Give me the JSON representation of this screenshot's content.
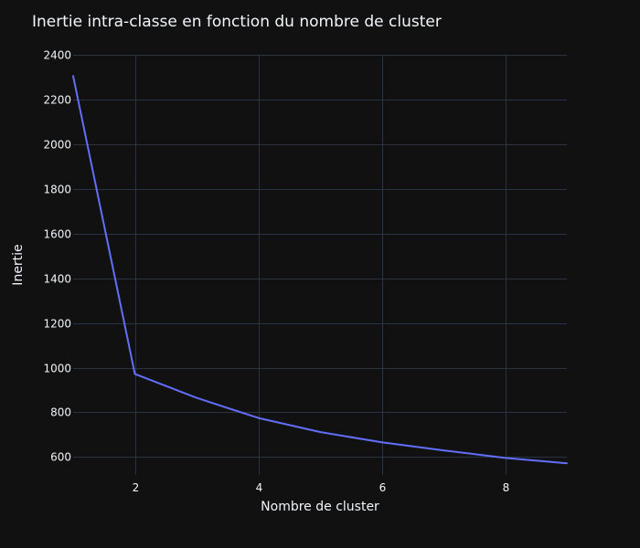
{
  "chart_data": {
    "type": "line",
    "title": "Inertie intra-classe en fonction du nombre de cluster",
    "xlabel": "Nombre de cluster",
    "ylabel": "Inertie",
    "x": [
      1,
      2,
      3,
      4,
      5,
      6,
      7,
      8,
      9
    ],
    "series": [
      {
        "values": [
          2305,
          972,
          865,
          775,
          712,
          666,
          630,
          596,
          572
        ]
      }
    ],
    "xlim": [
      1,
      9
    ],
    "ylim": [
      520,
      2400
    ],
    "xticks": [
      2,
      4,
      6,
      8
    ],
    "yticks": [
      600,
      800,
      1000,
      1200,
      1400,
      1600,
      1800,
      2000,
      2200,
      2400
    ],
    "grid": true,
    "colors": {
      "background": "#111111",
      "grid": "#283442",
      "text": "#f2f5fa",
      "line": "#636efa"
    }
  }
}
